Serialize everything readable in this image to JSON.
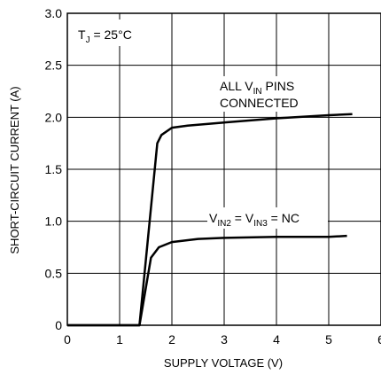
{
  "chart_data": {
    "type": "line",
    "xlabel": "SUPPLY VOLTAGE (V)",
    "ylabel": "SHORT-CIRCUIT CURRENT (A)",
    "xlim": [
      0,
      6
    ],
    "ylim": [
      0,
      3.0
    ],
    "grid": true,
    "x_ticks": [
      "0",
      "1",
      "2",
      "3",
      "4",
      "5",
      "6"
    ],
    "y_ticks": [
      "0",
      "0.5",
      "1.0",
      "1.5",
      "2.0",
      "2.5",
      "3.0"
    ],
    "condition": {
      "main": "T",
      "sub": "J",
      "rest": " = 25°C"
    },
    "series": [
      {
        "points": [
          [
            0,
            0
          ],
          [
            1.38,
            0
          ],
          [
            1.72,
            1.75
          ],
          [
            1.8,
            1.83
          ],
          [
            2.0,
            1.9
          ],
          [
            2.3,
            1.92
          ],
          [
            3.0,
            1.95
          ],
          [
            4.0,
            1.99
          ],
          [
            5.0,
            2.02
          ],
          [
            5.45,
            2.03
          ]
        ]
      },
      {
        "points": [
          [
            0,
            0
          ],
          [
            1.38,
            0
          ],
          [
            1.6,
            0.65
          ],
          [
            1.75,
            0.75
          ],
          [
            2.0,
            0.8
          ],
          [
            2.5,
            0.83
          ],
          [
            3.0,
            0.84
          ],
          [
            4.0,
            0.85
          ],
          [
            5.0,
            0.85
          ],
          [
            5.35,
            0.86
          ]
        ]
      }
    ],
    "annotations": {
      "all_pins_line1_a": "ALL V",
      "all_pins_line1_sub": "IN",
      "all_pins_line1_b": " PINS",
      "all_pins_line2": "CONNECTED",
      "nc_a": "V",
      "nc_sub1": "IN2",
      "nc_b": " = V",
      "nc_sub2": "IN3",
      "nc_c": " = NC"
    }
  }
}
